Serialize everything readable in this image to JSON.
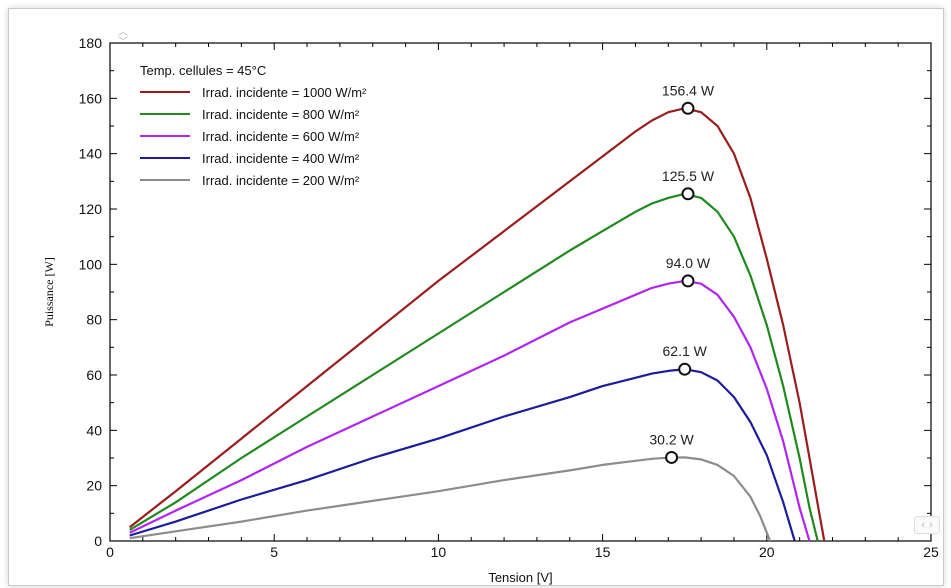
{
  "chart_data": {
    "type": "line",
    "title": "",
    "xlabel": "Tension [V]",
    "ylabel": "Puissance [W]",
    "xlim": [
      0,
      25
    ],
    "ylim": [
      0,
      180
    ],
    "xticks": [
      0,
      5,
      10,
      15,
      20,
      25
    ],
    "yticks": [
      0,
      20,
      40,
      60,
      80,
      100,
      120,
      140,
      160,
      180
    ],
    "grid": false,
    "legend_position": "top-left",
    "legend_title": "Temp. cellules = 45°C",
    "series": [
      {
        "name": "Irrad. incidente = 1000 W/m²",
        "color": "#9b1c1c",
        "x": [
          0.6,
          2,
          4,
          6,
          8,
          10,
          12,
          14,
          15,
          16,
          16.5,
          17,
          17.5,
          18,
          18.5,
          19,
          19.5,
          20,
          20.5,
          21,
          21.3,
          21.6,
          21.75
        ],
        "y": [
          5,
          18,
          37,
          56,
          75,
          94,
          112,
          130,
          139,
          148,
          152,
          155,
          156.4,
          155,
          150,
          140,
          124,
          102,
          78,
          50,
          30,
          10,
          0
        ]
      },
      {
        "name": "Irrad. incidente = 800 W/m²",
        "color": "#1e8a1e",
        "x": [
          0.6,
          2,
          4,
          6,
          8,
          10,
          12,
          14,
          15,
          16,
          16.5,
          17,
          17.5,
          18,
          18.5,
          19,
          19.5,
          20,
          20.5,
          21,
          21.3,
          21.55
        ],
        "y": [
          4,
          14,
          30,
          45,
          60,
          75,
          90,
          105,
          112,
          119,
          122,
          124,
          125.5,
          124,
          119,
          110,
          96,
          78,
          56,
          30,
          12,
          0
        ]
      },
      {
        "name": "Irrad. incidente = 600 W/m²",
        "color": "#b026f0",
        "x": [
          0.6,
          2,
          4,
          6,
          8,
          10,
          12,
          14,
          15,
          16,
          16.5,
          17,
          17.5,
          18,
          18.5,
          19,
          19.5,
          20,
          20.5,
          21,
          21.3
        ],
        "y": [
          3,
          11,
          22,
          34,
          45,
          56,
          67,
          79,
          84,
          89,
          91.5,
          93,
          94,
          93,
          89,
          81,
          70,
          55,
          36,
          12,
          0
        ]
      },
      {
        "name": "Irrad. incidente = 400 W/m²",
        "color": "#1c1c9c",
        "x": [
          0.6,
          2,
          4,
          6,
          8,
          10,
          12,
          14,
          15,
          16,
          16.5,
          17,
          17.5,
          18,
          18.5,
          19,
          19.5,
          20,
          20.5,
          20.85
        ],
        "y": [
          2,
          7,
          15,
          22,
          30,
          37,
          45,
          52,
          56,
          59,
          60.5,
          61.5,
          62.1,
          61,
          58,
          52,
          43,
          31,
          14,
          0
        ]
      },
      {
        "name": "Irrad. incidente = 200 W/m²",
        "color": "#8c8c8c",
        "x": [
          0.6,
          2,
          4,
          6,
          8,
          10,
          12,
          14,
          15,
          16,
          16.5,
          17,
          17.5,
          18,
          18.5,
          19,
          19.5,
          19.8,
          20.1
        ],
        "y": [
          1,
          3.5,
          7,
          11,
          14.5,
          18,
          22,
          25.5,
          27.5,
          29,
          29.7,
          30.1,
          30.2,
          29.5,
          27.5,
          23.5,
          16,
          9,
          0
        ]
      }
    ],
    "annotations": [
      {
        "text": "156.4 W",
        "x": 17.6,
        "y": 156.4
      },
      {
        "text": "125.5 W",
        "x": 17.6,
        "y": 125.5
      },
      {
        "text": "94.0 W",
        "x": 17.6,
        "y": 94.0
      },
      {
        "text": "62.1 W",
        "x": 17.5,
        "y": 62.1
      },
      {
        "text": "30.2 W",
        "x": 17.1,
        "y": 30.2
      }
    ]
  }
}
